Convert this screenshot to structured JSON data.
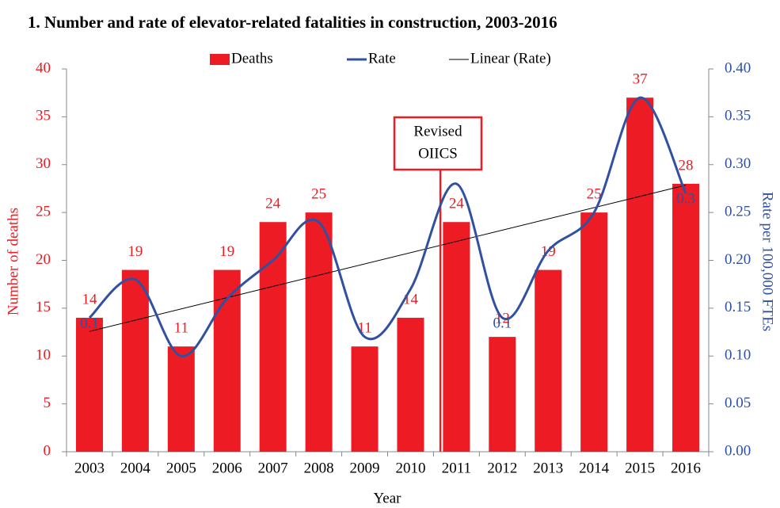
{
  "chart_data": {
    "type": "bar-line",
    "title": "1. Number and rate of elevator-related fatalities in construction, 2003-2016",
    "x_label": "Year",
    "y_label": "Number of deaths",
    "y2_label": "Rate per 100,000 FTEs",
    "categories": [
      "2003",
      "2004",
      "2005",
      "2006",
      "2007",
      "2008",
      "2009",
      "2010",
      "2011",
      "2012",
      "2013",
      "2014",
      "2015",
      "2016"
    ],
    "series": [
      {
        "name": "Deaths",
        "type": "bar",
        "color": "#ed1c24",
        "values": [
          14,
          19,
          11,
          19,
          24,
          25,
          11,
          14,
          24,
          12,
          19,
          25,
          37,
          28
        ]
      },
      {
        "name": "Rate",
        "type": "line",
        "smooth": true,
        "axis": "y2",
        "color": "#3150a0",
        "values": [
          0.14,
          0.18,
          0.1,
          0.16,
          0.2,
          0.24,
          0.12,
          0.17,
          0.28,
          0.14,
          0.21,
          0.25,
          0.37,
          0.27
        ],
        "value_labels": [
          "0.1",
          null,
          null,
          null,
          null,
          null,
          null,
          null,
          null,
          "0.1",
          null,
          null,
          null,
          "0.3"
        ]
      }
    ],
    "trendline": {
      "name": "Linear (Rate)",
      "of": "Rate",
      "color": "#000000"
    },
    "annotation": {
      "lines": [
        "Revised",
        "OIICS"
      ],
      "color": "#ed1c24"
    },
    "ylim": [
      0,
      40
    ],
    "yticks": [
      0,
      5,
      10,
      15,
      20,
      25,
      30,
      35,
      40
    ],
    "y2lim": [
      0,
      0.4
    ],
    "y2ticks": [
      {
        "value": 0,
        "label": "0.00"
      },
      {
        "value": 0.05,
        "label": "0.05"
      },
      {
        "value": 0.1,
        "label": "0.10"
      },
      {
        "value": 0.15,
        "label": "0.15"
      },
      {
        "value": 0.2,
        "label": "0.20"
      },
      {
        "value": 0.25,
        "label": "0.25"
      },
      {
        "value": 0.3,
        "label": "0.30"
      },
      {
        "value": 0.35,
        "label": "0.35"
      },
      {
        "value": 0.4,
        "label": "0.40"
      }
    ],
    "legend": "top",
    "grid": false
  }
}
